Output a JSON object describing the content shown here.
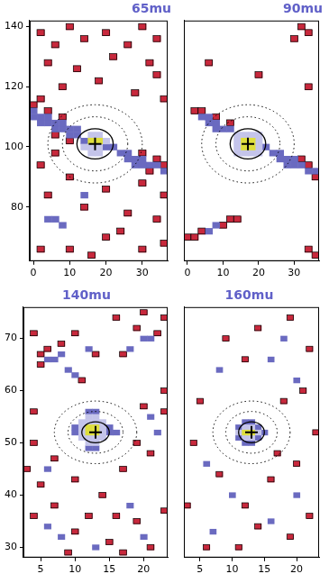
{
  "chart_data": [
    {
      "type": "heatmap",
      "title": "65mu",
      "xlim": [
        -1,
        37
      ],
      "ylim": [
        62,
        142
      ],
      "xticks": [
        0,
        10,
        20,
        30
      ],
      "yticks": [
        80,
        100,
        120,
        140
      ],
      "tick_labels": true,
      "cell_size": [
        2,
        2
      ],
      "colors": [
        "#c8283c",
        "#6a6ac0",
        "#c4c4ea",
        "#dede3c"
      ],
      "center": [
        17,
        101
      ],
      "marker": "cross",
      "circle_radius": 5,
      "dotted_radii": [
        9,
        13
      ],
      "cells": [
        [
          0,
          110,
          2
        ],
        [
          2,
          108,
          2
        ],
        [
          4,
          108,
          2
        ],
        [
          6,
          106,
          2
        ],
        [
          8,
          106,
          2
        ],
        [
          10,
          104,
          2
        ],
        [
          12,
          104,
          2
        ],
        [
          14,
          102,
          2
        ],
        [
          20,
          100,
          2
        ],
        [
          22,
          100,
          2
        ],
        [
          24,
          98,
          2
        ],
        [
          26,
          98,
          2
        ],
        [
          28,
          96,
          2
        ],
        [
          30,
          96,
          2
        ],
        [
          32,
          94,
          2
        ],
        [
          34,
          94,
          2
        ],
        [
          36,
          92,
          2
        ],
        [
          0,
          112,
          2
        ],
        [
          2,
          110,
          2
        ],
        [
          4,
          110,
          2
        ],
        [
          6,
          108,
          2
        ],
        [
          8,
          108,
          2
        ],
        [
          10,
          106,
          2
        ],
        [
          12,
          106,
          2
        ],
        [
          26,
          96,
          2
        ],
        [
          28,
          94,
          2
        ],
        [
          30,
          94,
          2
        ],
        [
          4,
          76,
          2
        ],
        [
          6,
          76,
          2
        ],
        [
          8,
          74,
          2
        ],
        [
          14,
          84,
          2
        ],
        [
          14,
          100,
          3
        ],
        [
          16,
          100,
          3
        ],
        [
          18,
          100,
          3
        ],
        [
          16,
          98,
          3
        ],
        [
          18,
          98,
          3
        ],
        [
          16,
          104,
          3
        ],
        [
          18,
          104,
          3
        ],
        [
          20,
          102,
          3
        ],
        [
          16,
          102,
          4
        ],
        [
          18,
          102,
          4
        ],
        [
          2,
          138,
          1
        ],
        [
          6,
          134,
          1
        ],
        [
          10,
          140,
          1
        ],
        [
          14,
          136,
          1
        ],
        [
          20,
          138,
          1
        ],
        [
          26,
          134,
          1
        ],
        [
          30,
          140,
          1
        ],
        [
          34,
          136,
          1
        ],
        [
          4,
          128,
          1
        ],
        [
          12,
          126,
          1
        ],
        [
          22,
          130,
          1
        ],
        [
          32,
          128,
          1
        ],
        [
          8,
          120,
          1
        ],
        [
          18,
          122,
          1
        ],
        [
          28,
          118,
          1
        ],
        [
          2,
          116,
          1
        ],
        [
          36,
          116,
          1
        ],
        [
          34,
          124,
          1
        ],
        [
          6,
          98,
          1
        ],
        [
          2,
          94,
          1
        ],
        [
          10,
          90,
          1
        ],
        [
          30,
          88,
          1
        ],
        [
          36,
          84,
          1
        ],
        [
          20,
          86,
          1
        ],
        [
          14,
          80,
          1
        ],
        [
          26,
          78,
          1
        ],
        [
          4,
          84,
          1
        ],
        [
          34,
          76,
          1
        ],
        [
          20,
          70,
          1
        ],
        [
          10,
          66,
          1
        ],
        [
          30,
          66,
          1
        ],
        [
          16,
          64,
          1
        ],
        [
          24,
          72,
          1
        ],
        [
          2,
          66,
          1
        ],
        [
          36,
          68,
          1
        ],
        [
          0,
          114,
          1
        ],
        [
          4,
          112,
          1
        ],
        [
          8,
          110,
          1
        ],
        [
          30,
          98,
          1
        ],
        [
          34,
          96,
          1
        ],
        [
          36,
          94,
          1
        ],
        [
          32,
          92,
          1
        ],
        [
          6,
          104,
          1
        ],
        [
          10,
          102,
          1
        ]
      ]
    },
    {
      "type": "heatmap",
      "title": "90mu",
      "xlim": [
        -1,
        37
      ],
      "ylim": [
        62,
        142
      ],
      "xticks": [
        0,
        10,
        20,
        30
      ],
      "yticks": [
        80,
        100,
        120,
        140
      ],
      "tick_labels": "x",
      "cell_size": [
        2,
        2
      ],
      "colors": [
        "#c8283c",
        "#6a6ac0",
        "#c4c4ea",
        "#dede3c"
      ],
      "center": [
        17,
        101
      ],
      "marker": "cross",
      "circle_radius": 5,
      "dotted_radii": [
        9,
        13
      ],
      "cells": [
        [
          4,
          110,
          2
        ],
        [
          6,
          110,
          2
        ],
        [
          8,
          108,
          2
        ],
        [
          10,
          106,
          2
        ],
        [
          12,
          106,
          2
        ],
        [
          22,
          100,
          2
        ],
        [
          24,
          98,
          2
        ],
        [
          26,
          98,
          2
        ],
        [
          28,
          96,
          2
        ],
        [
          30,
          94,
          2
        ],
        [
          32,
          94,
          2
        ],
        [
          34,
          92,
          2
        ],
        [
          36,
          92,
          2
        ],
        [
          6,
          108,
          2
        ],
        [
          8,
          106,
          2
        ],
        [
          26,
          96,
          2
        ],
        [
          28,
          94,
          2
        ],
        [
          30,
          96,
          2
        ],
        [
          6,
          72,
          2
        ],
        [
          8,
          74,
          2
        ],
        [
          14,
          98,
          3
        ],
        [
          16,
          98,
          3
        ],
        [
          18,
          98,
          3
        ],
        [
          20,
          98,
          3
        ],
        [
          14,
          100,
          3
        ],
        [
          20,
          100,
          3
        ],
        [
          14,
          102,
          3
        ],
        [
          20,
          102,
          3
        ],
        [
          14,
          104,
          3
        ],
        [
          16,
          104,
          3
        ],
        [
          18,
          104,
          3
        ],
        [
          20,
          104,
          3
        ],
        [
          16,
          100,
          4
        ],
        [
          18,
          100,
          4
        ],
        [
          16,
          102,
          4
        ],
        [
          18,
          102,
          4
        ],
        [
          2,
          112,
          1
        ],
        [
          4,
          112,
          1
        ],
        [
          8,
          110,
          1
        ],
        [
          12,
          108,
          1
        ],
        [
          32,
          96,
          1
        ],
        [
          36,
          90,
          1
        ],
        [
          34,
          94,
          1
        ],
        [
          32,
          140,
          1
        ],
        [
          34,
          138,
          1
        ],
        [
          30,
          136,
          1
        ],
        [
          6,
          128,
          1
        ],
        [
          20,
          124,
          1
        ],
        [
          34,
          120,
          1
        ],
        [
          0,
          70,
          1
        ],
        [
          2,
          70,
          1
        ],
        [
          4,
          72,
          1
        ],
        [
          10,
          74,
          1
        ],
        [
          12,
          76,
          1
        ],
        [
          14,
          76,
          1
        ],
        [
          34,
          66,
          1
        ],
        [
          36,
          64,
          1
        ]
      ]
    },
    {
      "type": "heatmap",
      "title": "140mu",
      "xlim": [
        2.5,
        23.5
      ],
      "ylim": [
        28,
        76
      ],
      "xticks": [
        5,
        10,
        15,
        20
      ],
      "yticks": [
        30,
        40,
        50,
        60,
        70
      ],
      "tick_labels": true,
      "cell_size": [
        1,
        1
      ],
      "colors": [
        "#c8283c",
        "#6a6ac0",
        "#c4c4ea",
        "#dede3c"
      ],
      "center": [
        13,
        52
      ],
      "marker": "cross",
      "circle_radius": 2,
      "dotted_radii": [
        4,
        6
      ],
      "cells": [
        [
          10,
          52,
          2
        ],
        [
          10,
          53,
          2
        ],
        [
          15,
          52,
          2
        ],
        [
          15,
          53,
          2
        ],
        [
          16,
          52,
          2
        ],
        [
          12,
          49,
          2
        ],
        [
          13,
          49,
          2
        ],
        [
          12,
          56,
          2
        ],
        [
          13,
          56,
          2
        ],
        [
          6,
          66,
          2
        ],
        [
          7,
          66,
          2
        ],
        [
          8,
          67,
          2
        ],
        [
          10,
          63,
          2
        ],
        [
          9,
          64,
          2
        ],
        [
          12,
          68,
          2
        ],
        [
          20,
          70,
          2
        ],
        [
          21,
          70,
          2
        ],
        [
          18,
          68,
          2
        ],
        [
          21,
          55,
          2
        ],
        [
          22,
          52,
          2
        ],
        [
          6,
          45,
          2
        ],
        [
          6,
          34,
          2
        ],
        [
          8,
          32,
          2
        ],
        [
          18,
          38,
          2
        ],
        [
          20,
          32,
          2
        ],
        [
          13,
          30,
          2
        ],
        [
          11,
          51,
          3
        ],
        [
          11,
          52,
          3
        ],
        [
          11,
          53,
          3
        ],
        [
          11,
          54,
          3
        ],
        [
          14,
          51,
          3
        ],
        [
          14,
          52,
          3
        ],
        [
          14,
          53,
          3
        ],
        [
          14,
          54,
          3
        ],
        [
          12,
          50,
          3
        ],
        [
          13,
          50,
          3
        ],
        [
          12,
          55,
          3
        ],
        [
          13,
          55,
          3
        ],
        [
          12,
          51,
          3
        ],
        [
          13,
          51,
          3
        ],
        [
          12,
          54,
          3
        ],
        [
          13,
          54,
          3
        ],
        [
          12,
          52,
          4
        ],
        [
          13,
          52,
          4
        ],
        [
          12,
          53,
          4
        ],
        [
          13,
          53,
          4
        ],
        [
          5,
          65,
          1
        ],
        [
          5,
          67,
          1
        ],
        [
          6,
          68,
          1
        ],
        [
          8,
          69,
          1
        ],
        [
          11,
          62,
          1
        ],
        [
          13,
          67,
          1
        ],
        [
          4,
          71,
          1
        ],
        [
          10,
          71,
          1
        ],
        [
          19,
          72,
          1
        ],
        [
          22,
          71,
          1
        ],
        [
          17,
          67,
          1
        ],
        [
          23,
          74,
          1
        ],
        [
          20,
          75,
          1
        ],
        [
          16,
          74,
          1
        ],
        [
          20,
          57,
          1
        ],
        [
          23,
          56,
          1
        ],
        [
          19,
          50,
          1
        ],
        [
          21,
          48,
          1
        ],
        [
          23,
          60,
          1
        ],
        [
          4,
          50,
          1
        ],
        [
          3,
          45,
          1
        ],
        [
          5,
          42,
          1
        ],
        [
          7,
          47,
          1
        ],
        [
          4,
          56,
          1
        ],
        [
          4,
          36,
          1
        ],
        [
          7,
          38,
          1
        ],
        [
          10,
          33,
          1
        ],
        [
          12,
          36,
          1
        ],
        [
          15,
          31,
          1
        ],
        [
          16,
          36,
          1
        ],
        [
          19,
          35,
          1
        ],
        [
          21,
          30,
          1
        ],
        [
          23,
          37,
          1
        ],
        [
          9,
          29,
          1
        ],
        [
          17,
          29,
          1
        ],
        [
          14,
          40,
          1
        ],
        [
          10,
          43,
          1
        ],
        [
          17,
          45,
          1
        ]
      ]
    },
    {
      "type": "heatmap",
      "title": "160mu",
      "xlim": [
        2.5,
        23.5
      ],
      "ylim": [
        28,
        76
      ],
      "xticks": [
        5,
        10,
        15,
        20
      ],
      "yticks": [
        30,
        40,
        50,
        60,
        70
      ],
      "tick_labels": "x",
      "cell_size": [
        1,
        1
      ],
      "colors": [
        "#c8283c",
        "#6a6ac0",
        "#c4c4ea",
        "#dede3c"
      ],
      "center": [
        13,
        52
      ],
      "marker": "cross",
      "circle_radius": 2,
      "dotted_radii": [
        4,
        6
      ],
      "cells": [
        [
          11,
          51,
          2
        ],
        [
          11,
          53,
          2
        ],
        [
          14,
          51,
          2
        ],
        [
          14,
          53,
          2
        ],
        [
          12,
          50,
          2
        ],
        [
          13,
          50,
          2
        ],
        [
          12,
          54,
          2
        ],
        [
          13,
          54,
          2
        ],
        [
          15,
          52,
          2
        ],
        [
          16,
          66,
          2
        ],
        [
          18,
          70,
          2
        ],
        [
          20,
          62,
          2
        ],
        [
          8,
          64,
          2
        ],
        [
          6,
          46,
          2
        ],
        [
          10,
          40,
          2
        ],
        [
          20,
          40,
          2
        ],
        [
          16,
          35,
          2
        ],
        [
          7,
          33,
          2
        ],
        [
          12,
          51,
          3
        ],
        [
          13,
          51,
          3
        ],
        [
          12,
          53,
          3
        ],
        [
          13,
          53,
          3
        ],
        [
          11,
          52,
          3
        ],
        [
          14,
          52,
          3
        ],
        [
          12,
          52,
          4
        ],
        [
          13,
          52,
          4
        ],
        [
          9,
          70,
          1
        ],
        [
          12,
          66,
          1
        ],
        [
          14,
          72,
          1
        ],
        [
          19,
          74,
          1
        ],
        [
          22,
          68,
          1
        ],
        [
          21,
          60,
          1
        ],
        [
          18,
          58,
          1
        ],
        [
          17,
          48,
          1
        ],
        [
          20,
          46,
          1
        ],
        [
          5,
          58,
          1
        ],
        [
          4,
          50,
          1
        ],
        [
          8,
          44,
          1
        ],
        [
          3,
          38,
          1
        ],
        [
          12,
          38,
          1
        ],
        [
          14,
          34,
          1
        ],
        [
          19,
          32,
          1
        ],
        [
          22,
          36,
          1
        ],
        [
          6,
          30,
          1
        ],
        [
          11,
          30,
          1
        ],
        [
          23,
          52,
          1
        ],
        [
          16,
          43,
          1
        ]
      ]
    }
  ]
}
